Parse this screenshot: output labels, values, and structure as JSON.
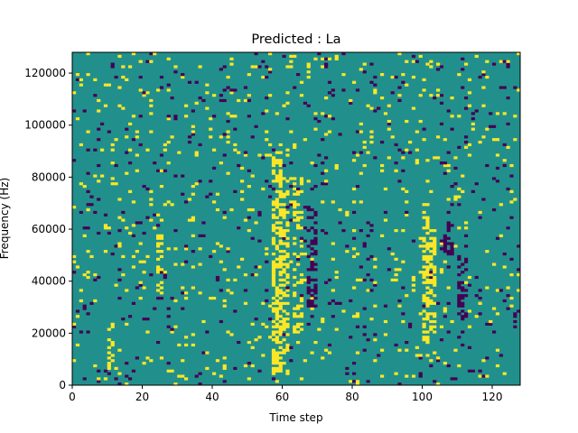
{
  "chart_data": {
    "type": "heatmap",
    "title": "Predicted : La",
    "xlabel": "Time step",
    "ylabel": "Frequency (Hz)",
    "xlim": [
      0,
      128
    ],
    "ylim": [
      0,
      128000
    ],
    "x_ticks": [
      0,
      20,
      40,
      60,
      80,
      100,
      120
    ],
    "y_ticks": [
      0,
      20000,
      40000,
      60000,
      80000,
      100000,
      120000
    ],
    "rows": 128,
    "cols": 128,
    "colormap": {
      "-1": "#440154",
      "0": "#21908d",
      "1": "#fde725"
    },
    "background_value": 0,
    "bands": [
      {
        "x0": 57,
        "x1": 60,
        "y0": 4000,
        "y1": 90000,
        "value": 1,
        "density": 0.55
      },
      {
        "x0": 60,
        "x1": 62,
        "y0": 12000,
        "y1": 75000,
        "value": 1,
        "density": 0.45
      },
      {
        "x0": 63,
        "x1": 66,
        "y0": 20000,
        "y1": 80000,
        "value": 1,
        "density": 0.25
      },
      {
        "x0": 67,
        "x1": 70,
        "y0": 30000,
        "y1": 70000,
        "value": -1,
        "density": 0.45
      },
      {
        "x0": 100,
        "x1": 102,
        "y0": 16000,
        "y1": 70000,
        "value": 1,
        "density": 0.5
      },
      {
        "x0": 102,
        "x1": 104,
        "y0": 20000,
        "y1": 60000,
        "value": 1,
        "density": 0.45
      },
      {
        "x0": 106,
        "x1": 109,
        "y0": 50000,
        "y1": 70000,
        "value": -1,
        "density": 0.35
      },
      {
        "x0": 110,
        "x1": 113,
        "y0": 25000,
        "y1": 50000,
        "value": -1,
        "density": 0.3
      },
      {
        "x0": 10,
        "x1": 12,
        "y0": 6000,
        "y1": 24000,
        "value": 1,
        "density": 0.55
      },
      {
        "x0": 24,
        "x1": 26,
        "y0": 35000,
        "y1": 60000,
        "value": 1,
        "density": 0.4
      }
    ],
    "scatter_density": 0.035,
    "scatter_seed": 7
  }
}
